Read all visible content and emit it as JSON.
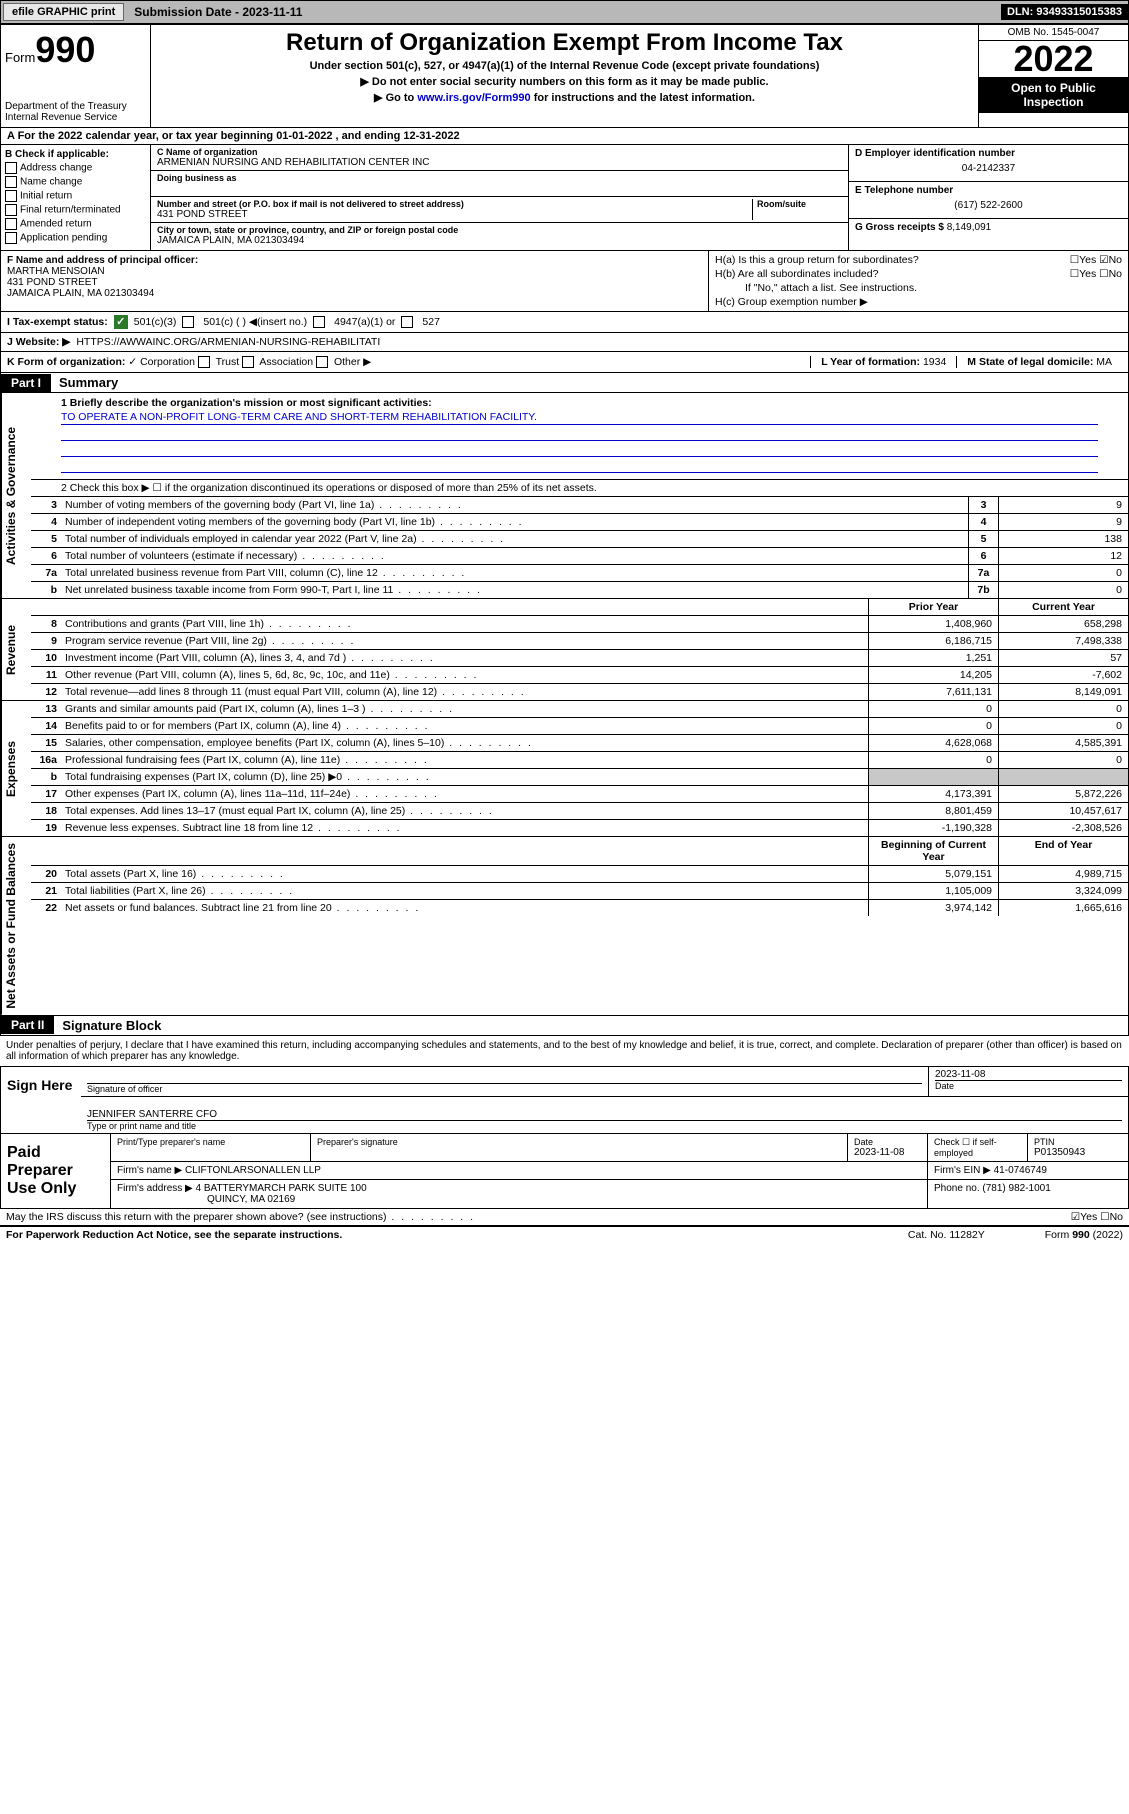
{
  "topbar": {
    "efile": "efile GRAPHIC print",
    "sub_lbl": "Submission Date - 2023-11-11",
    "dln": "DLN: 93493315015383"
  },
  "header": {
    "form_word": "Form",
    "form_no": "990",
    "dept": "Department of the Treasury",
    "irs": "Internal Revenue Service",
    "title": "Return of Organization Exempt From Income Tax",
    "sub1": "Under section 501(c), 527, or 4947(a)(1) of the Internal Revenue Code (except private foundations)",
    "sub2": "▶ Do not enter social security numbers on this form as it may be made public.",
    "sub3_pre": "▶ Go to ",
    "sub3_link": "www.irs.gov/Form990",
    "sub3_post": " for instructions and the latest information.",
    "omb": "OMB No. 1545-0047",
    "year": "2022",
    "otp": "Open to Public Inspection"
  },
  "row_a": "A For the 2022 calendar year, or tax year beginning 01-01-2022    , and ending 12-31-2022",
  "col_b": {
    "lbl": "B Check if applicable:",
    "items": [
      "Address change",
      "Name change",
      "Initial return",
      "Final return/terminated",
      "Amended return",
      "Application pending"
    ]
  },
  "col_c": {
    "name_lbl": "C Name of organization",
    "name": "ARMENIAN NURSING AND REHABILITATION CENTER INC",
    "dba_lbl": "Doing business as",
    "addr_lbl": "Number and street (or P.O. box if mail is not delivered to street address)",
    "room_lbl": "Room/suite",
    "addr": "431 POND STREET",
    "city_lbl": "City or town, state or province, country, and ZIP or foreign postal code",
    "city": "JAMAICA PLAIN, MA  021303494"
  },
  "col_de": {
    "d_lbl": "D Employer identification number",
    "d_val": "04-2142337",
    "e_lbl": "E Telephone number",
    "e_val": "(617) 522-2600",
    "g_lbl": "G Gross receipts $",
    "g_val": "8,149,091"
  },
  "col_f": {
    "lbl": "F Name and address of principal officer:",
    "name": "MARTHA MENSOIAN",
    "addr1": "431 POND STREET",
    "addr2": "JAMAICA PLAIN, MA  021303494"
  },
  "col_h": {
    "ha": "H(a)  Is this a group return for subordinates?",
    "ha_ans": "☐Yes ☑No",
    "hb": "H(b)  Are all subordinates included?",
    "hb_ans": "☐Yes ☐No",
    "hb_note": "If \"No,\" attach a list. See instructions.",
    "hc": "H(c)  Group exemption number ▶"
  },
  "row_i": {
    "lbl": "I   Tax-exempt status:",
    "opt1": "501(c)(3)",
    "opt2": "501(c) (  ) ◀(insert no.)",
    "opt3": "4947(a)(1) or",
    "opt4": "527"
  },
  "row_j": {
    "lbl": "J   Website: ▶",
    "val": "HTTPS://AWWAINC.ORG/ARMENIAN-NURSING-REHABILITATI"
  },
  "row_k": {
    "lbl": "K Form of organization:",
    "opts": [
      "Corporation",
      "Trust",
      "Association",
      "Other ▶"
    ],
    "l_lbl": "L Year of formation:",
    "l_val": "1934",
    "m_lbl": "M State of legal domicile:",
    "m_val": "MA"
  },
  "parts": {
    "p1": "Part I",
    "p1t": "Summary",
    "p2": "Part II",
    "p2t": "Signature Block"
  },
  "mission": {
    "lbl": "1  Briefly describe the organization's mission or most significant activities:",
    "txt": "TO OPERATE A NON-PROFIT LONG-TERM CARE AND SHORT-TERM REHABILITATION FACILITY."
  },
  "line2": "2   Check this box ▶ ☐  if the organization discontinued its operations or disposed of more than 25% of its net assets.",
  "vtabs": {
    "ag": "Activities & Governance",
    "rev": "Revenue",
    "exp": "Expenses",
    "na": "Net Assets or Fund Balances"
  },
  "gov_lines": [
    {
      "n": "3",
      "t": "Number of voting members of the governing body (Part VI, line 1a)",
      "nb": "3",
      "v": "9"
    },
    {
      "n": "4",
      "t": "Number of independent voting members of the governing body (Part VI, line 1b)",
      "nb": "4",
      "v": "9"
    },
    {
      "n": "5",
      "t": "Total number of individuals employed in calendar year 2022 (Part V, line 2a)",
      "nb": "5",
      "v": "138"
    },
    {
      "n": "6",
      "t": "Total number of volunteers (estimate if necessary)",
      "nb": "6",
      "v": "12"
    },
    {
      "n": "7a",
      "t": "Total unrelated business revenue from Part VIII, column (C), line 12",
      "nb": "7a",
      "v": "0"
    },
    {
      "n": "b",
      "t": "Net unrelated business taxable income from Form 990-T, Part I, line 11",
      "nb": "7b",
      "v": "0"
    }
  ],
  "col_headers": {
    "py": "Prior Year",
    "cy": "Current Year"
  },
  "rev_lines": [
    {
      "n": "8",
      "t": "Contributions and grants (Part VIII, line 1h)",
      "py": "1,408,960",
      "cy": "658,298"
    },
    {
      "n": "9",
      "t": "Program service revenue (Part VIII, line 2g)",
      "py": "6,186,715",
      "cy": "7,498,338"
    },
    {
      "n": "10",
      "t": "Investment income (Part VIII, column (A), lines 3, 4, and 7d )",
      "py": "1,251",
      "cy": "57"
    },
    {
      "n": "11",
      "t": "Other revenue (Part VIII, column (A), lines 5, 6d, 8c, 9c, 10c, and 11e)",
      "py": "14,205",
      "cy": "-7,602"
    },
    {
      "n": "12",
      "t": "Total revenue—add lines 8 through 11 (must equal Part VIII, column (A), line 12)",
      "py": "7,611,131",
      "cy": "8,149,091"
    }
  ],
  "exp_lines": [
    {
      "n": "13",
      "t": "Grants and similar amounts paid (Part IX, column (A), lines 1–3 )",
      "py": "0",
      "cy": "0"
    },
    {
      "n": "14",
      "t": "Benefits paid to or for members (Part IX, column (A), line 4)",
      "py": "0",
      "cy": "0"
    },
    {
      "n": "15",
      "t": "Salaries, other compensation, employee benefits (Part IX, column (A), lines 5–10)",
      "py": "4,628,068",
      "cy": "4,585,391"
    },
    {
      "n": "16a",
      "t": "Professional fundraising fees (Part IX, column (A), line 11e)",
      "py": "0",
      "cy": "0"
    },
    {
      "n": "b",
      "t": "Total fundraising expenses (Part IX, column (D), line 25) ▶0",
      "py": "",
      "cy": "",
      "shade": true
    },
    {
      "n": "17",
      "t": "Other expenses (Part IX, column (A), lines 11a–11d, 11f–24e)",
      "py": "4,173,391",
      "cy": "5,872,226"
    },
    {
      "n": "18",
      "t": "Total expenses. Add lines 13–17 (must equal Part IX, column (A), line 25)",
      "py": "8,801,459",
      "cy": "10,457,617"
    },
    {
      "n": "19",
      "t": "Revenue less expenses. Subtract line 18 from line 12",
      "py": "-1,190,328",
      "cy": "-2,308,526"
    }
  ],
  "na_headers": {
    "b": "Beginning of Current Year",
    "e": "End of Year"
  },
  "na_lines": [
    {
      "n": "20",
      "t": "Total assets (Part X, line 16)",
      "py": "5,079,151",
      "cy": "4,989,715"
    },
    {
      "n": "21",
      "t": "Total liabilities (Part X, line 26)",
      "py": "1,105,009",
      "cy": "3,324,099"
    },
    {
      "n": "22",
      "t": "Net assets or fund balances. Subtract line 21 from line 20",
      "py": "3,974,142",
      "cy": "1,665,616"
    }
  ],
  "sig": {
    "decl": "Under penalties of perjury, I declare that I have examined this return, including accompanying schedules and statements, and to the best of my knowledge and belief, it is true, correct, and complete. Declaration of preparer (other than officer) is based on all information of which preparer has any knowledge.",
    "sign_here": "Sign Here",
    "sig_officer": "Signature of officer",
    "date": "2023-11-08",
    "date_lbl": "Date",
    "name": "JENNIFER SANTERRE CFO",
    "name_lbl": "Type or print name and title"
  },
  "paid": {
    "lbl": "Paid Preparer Use Only",
    "h1": "Print/Type preparer's name",
    "h2": "Preparer's signature",
    "h3": "Date",
    "h3v": "2023-11-08",
    "h4": "Check ☐ if self-employed",
    "h5": "PTIN",
    "h5v": "P01350943",
    "firm_lbl": "Firm's name    ▶",
    "firm": "CLIFTONLARSONALLEN LLP",
    "ein_lbl": "Firm's EIN ▶",
    "ein": "41-0746749",
    "addr_lbl": "Firm's address ▶",
    "addr1": "4 BATTERYMARCH PARK SUITE 100",
    "addr2": "QUINCY, MA  02169",
    "phone_lbl": "Phone no.",
    "phone": "(781) 982-1001"
  },
  "discuss": {
    "q": "May the IRS discuss this return with the preparer shown above? (see instructions)",
    "ans": "☑Yes  ☐No"
  },
  "footer": {
    "pra": "For Paperwork Reduction Act Notice, see the separate instructions.",
    "cat": "Cat. No. 11282Y",
    "form": "Form 990 (2022)"
  }
}
